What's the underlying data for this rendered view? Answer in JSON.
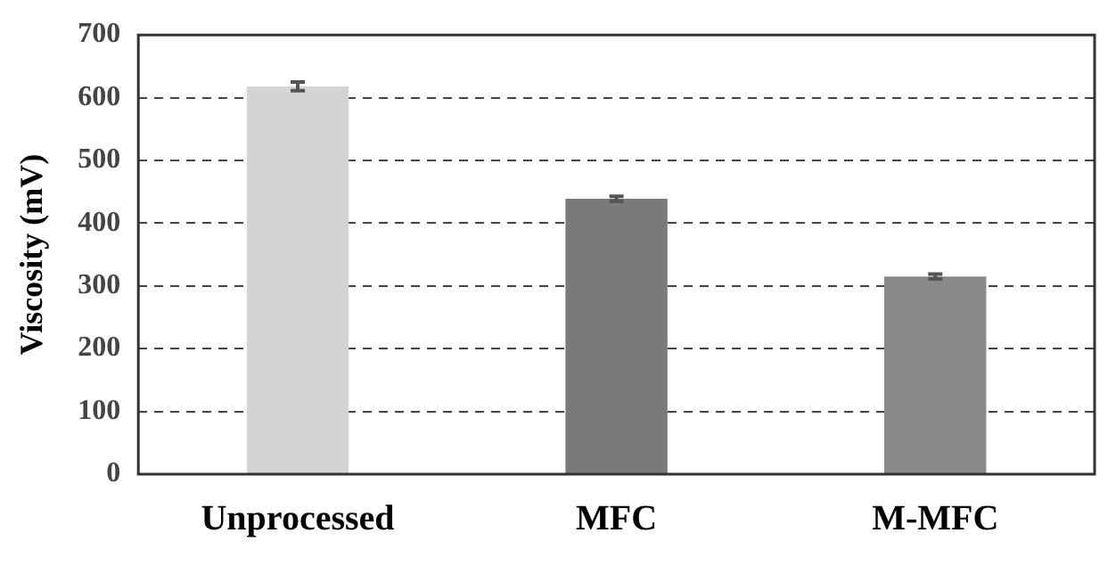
{
  "chart_data": {
    "type": "bar",
    "ylabel": "Viscosity (mV)",
    "categories": [
      "Unprocessed",
      "MFC",
      "M-MFC"
    ],
    "values": [
      618,
      439,
      315
    ],
    "colors": [
      "#d4d4d4",
      "#7a7a7a",
      "#8a8a8a"
    ],
    "errors": [
      7,
      4,
      4
    ],
    "ylim": [
      0,
      700
    ],
    "yticks": [
      0,
      100,
      200,
      300,
      400,
      500,
      600,
      700
    ],
    "grid": "y",
    "legend": false
  }
}
